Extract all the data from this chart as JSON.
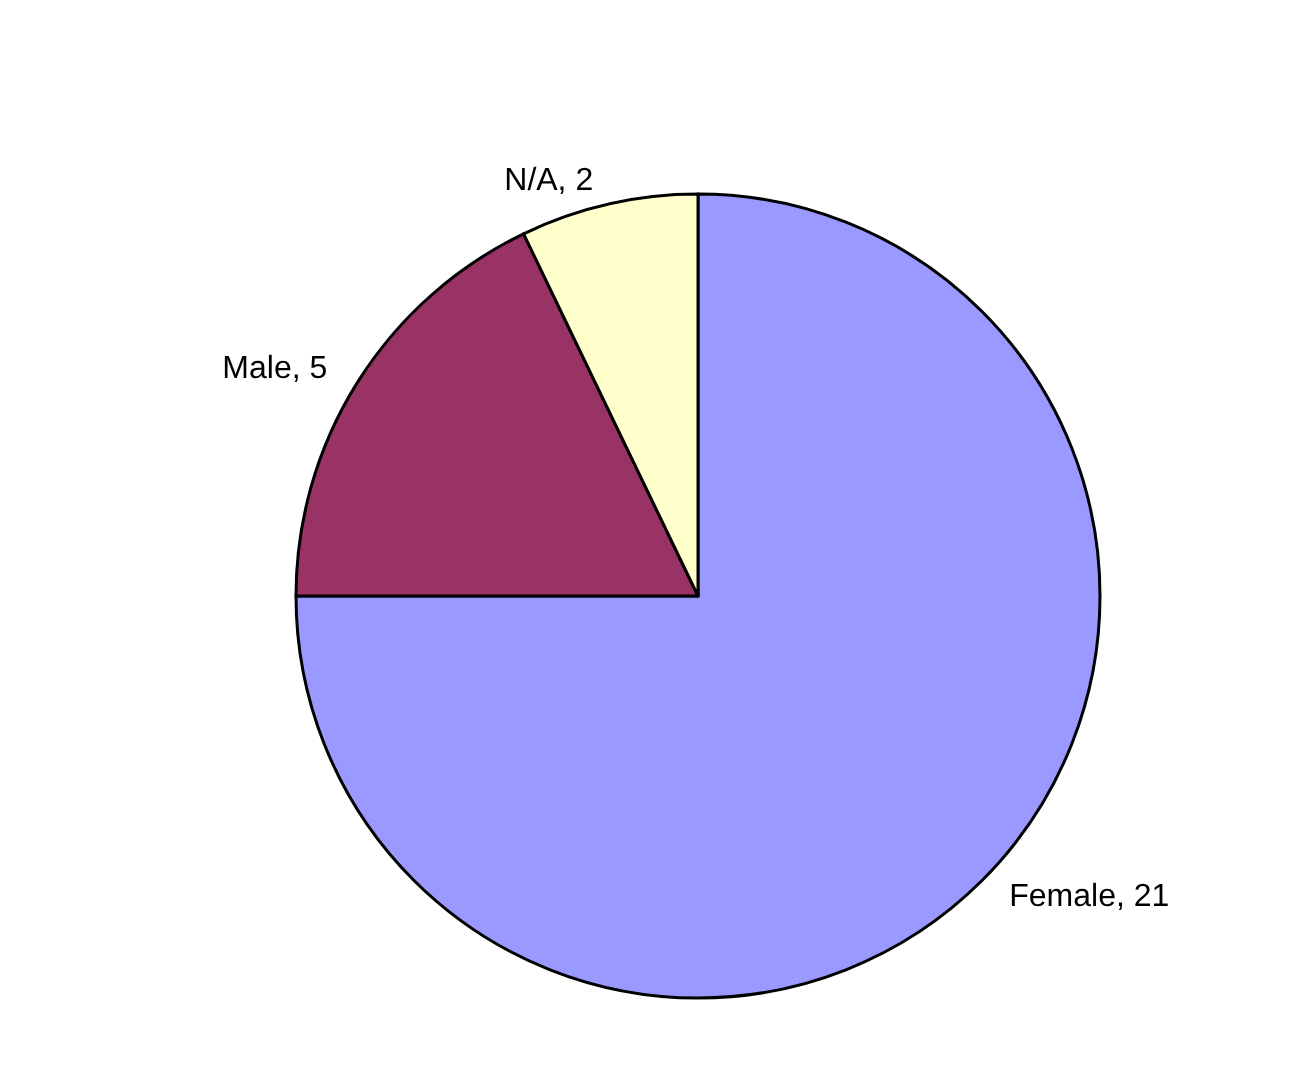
{
  "chart_data": {
    "type": "pie",
    "categories": [
      "Female",
      "Male",
      "N/A"
    ],
    "values": [
      21,
      5,
      2
    ],
    "value_labels": [
      ", 21",
      ", 5",
      ", 2"
    ],
    "colors": [
      "#9999ff",
      "#993366",
      "#ffffcc"
    ],
    "legend": false
  }
}
